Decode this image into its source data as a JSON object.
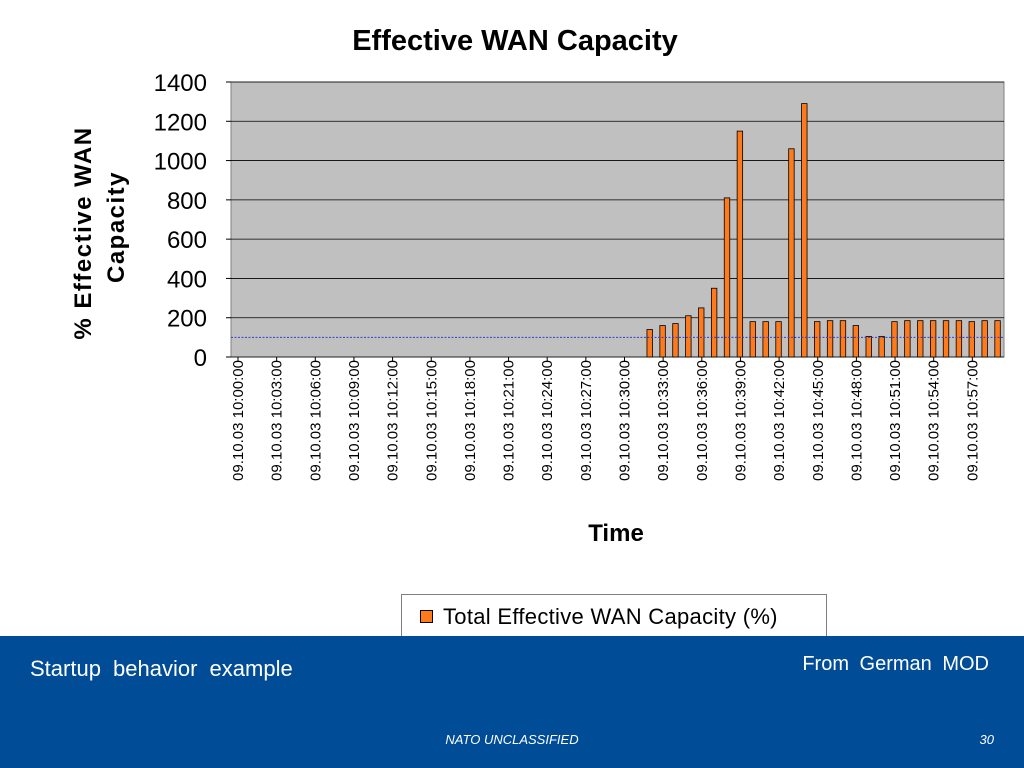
{
  "chart_data": {
    "type": "bar",
    "title": "Effective WAN Capacity",
    "xlabel": "Time",
    "ylabel_lines": [
      "% Effective WAN",
      "Capacity"
    ],
    "ylim": [
      0,
      1400
    ],
    "yticks": [
      0,
      200,
      400,
      600,
      800,
      1000,
      1200,
      1400
    ],
    "grid": true,
    "legend_position": "bottom",
    "series": [
      {
        "name": "Total Effective WAN Capacity (%)",
        "color": "#ff7a1a",
        "values": [
          0,
          0,
          0,
          0,
          0,
          0,
          0,
          0,
          0,
          0,
          0,
          0,
          0,
          0,
          0,
          0,
          0,
          0,
          0,
          0,
          0,
          0,
          0,
          0,
          0,
          0,
          0,
          0,
          0,
          0,
          0,
          0,
          140,
          160,
          170,
          210,
          250,
          350,
          810,
          1150,
          180,
          180,
          180,
          1060,
          1290,
          180,
          185,
          185,
          160,
          105,
          105,
          180,
          185,
          185,
          185,
          185,
          185,
          180,
          185,
          185
        ]
      }
    ],
    "tick_labels": [
      "09.10.03 10:00:00",
      "09.10.03 10:03:00",
      "09.10.03 10:06:00",
      "09.10.03 10:09:00",
      "09.10.03 10:12:00",
      "09.10.03 10:15:00",
      "09.10.03 10:18:00",
      "09.10.03 10:21:00",
      "09.10.03 10:24:00",
      "09.10.03 10:27:00",
      "09.10.03 10:30:00",
      "09.10.03 10:33:00",
      "09.10.03 10:36:00",
      "09.10.03 10:39:00",
      "09.10.03 10:42:00",
      "09.10.03 10:45:00",
      "09.10.03 10:48:00",
      "09.10.03 10:51:00",
      "09.10.03 10:54:00",
      "09.10.03 10:57:00"
    ],
    "reference_line": {
      "y": 100,
      "color": "#3a3ad0"
    },
    "plot_background": "#c0c0c0"
  },
  "footer": {
    "left_text": "Startup behavior example",
    "right_text": "From German MOD",
    "classification": "NATO UNCLASSIFIED",
    "page_number": "30",
    "background": "#004c97"
  }
}
